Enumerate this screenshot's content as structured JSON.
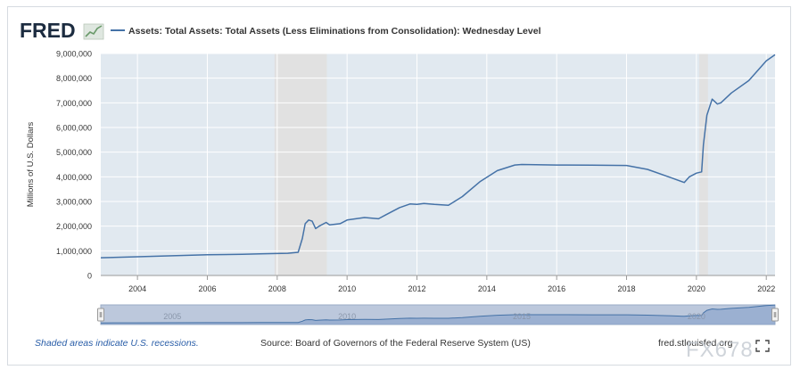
{
  "header": {
    "logo_text": "FRED",
    "series_title": "Assets: Total Assets: Total Assets (Less Eliminations from Consolidation): Wednesday Level"
  },
  "footer": {
    "recession_note": "Shaded areas indicate U.S. recessions.",
    "source": "Source: Board of Governors of the Federal Reserve System (US)",
    "site": "fred.stlouisfed.org",
    "watermark": "FX678"
  },
  "colors": {
    "line": "#4572a7",
    "recession": "#e1e1e1",
    "plot_bg": "#e1e9f0",
    "navigator": "#bcc8dc",
    "navigator_line": "#4572a7"
  },
  "chart_data": {
    "type": "line",
    "title": "Assets: Total Assets: Total Assets (Less Eliminations from Consolidation): Wednesday Level",
    "xlabel": "",
    "ylabel": "Millions of U.S. Dollars",
    "xlim": [
      2002.95,
      2022.25
    ],
    "ylim": [
      0,
      9000000
    ],
    "x_ticks": [
      2004,
      2006,
      2008,
      2010,
      2012,
      2014,
      2016,
      2018,
      2020,
      2022
    ],
    "x_tick_labels": [
      "2004",
      "2006",
      "2008",
      "2010",
      "2012",
      "2014",
      "2016",
      "2018",
      "2020",
      "2022"
    ],
    "y_ticks": [
      0,
      1000000,
      2000000,
      3000000,
      4000000,
      5000000,
      6000000,
      7000000,
      8000000,
      9000000
    ],
    "y_tick_labels": [
      "0",
      "1,000,000",
      "2,000,000",
      "3,000,000",
      "4,000,000",
      "5,000,000",
      "6,000,000",
      "7,000,000",
      "8,000,000",
      "9,000,000"
    ],
    "navigator_labels": [
      "2005",
      "2010",
      "2015",
      "2020"
    ],
    "navigator_label_x": [
      2005,
      2010,
      2015,
      2020
    ],
    "grid": true,
    "recessions": [
      [
        2007.92,
        2009.42
      ],
      [
        2020.08,
        2020.33
      ]
    ],
    "series": [
      {
        "name": "Total Assets",
        "x": [
          2002.95,
          2004.0,
          2005.0,
          2006.0,
          2007.0,
          2007.5,
          2007.95,
          2008.3,
          2008.6,
          2008.72,
          2008.8,
          2008.9,
          2009.0,
          2009.1,
          2009.2,
          2009.4,
          2009.5,
          2009.8,
          2010.0,
          2010.5,
          2010.9,
          2011.1,
          2011.5,
          2011.8,
          2012.0,
          2012.2,
          2012.5,
          2012.9,
          2013.3,
          2013.8,
          2014.3,
          2014.8,
          2015.0,
          2016.0,
          2017.0,
          2018.0,
          2018.6,
          2019.3,
          2019.65,
          2019.8,
          2020.0,
          2020.15,
          2020.2,
          2020.3,
          2020.45,
          2020.6,
          2020.7,
          2021.0,
          2021.5,
          2022.0,
          2022.25
        ],
        "values": [
          720000,
          760000,
          800000,
          840000,
          860000,
          880000,
          890000,
          900000,
          940000,
          1500000,
          2100000,
          2250000,
          2200000,
          1900000,
          2000000,
          2150000,
          2050000,
          2100000,
          2250000,
          2350000,
          2300000,
          2450000,
          2750000,
          2900000,
          2880000,
          2920000,
          2880000,
          2850000,
          3200000,
          3800000,
          4250000,
          4480000,
          4500000,
          4480000,
          4470000,
          4460000,
          4300000,
          3950000,
          3770000,
          4000000,
          4150000,
          4200000,
          5300000,
          6500000,
          7150000,
          6950000,
          7000000,
          7400000,
          7900000,
          8700000,
          8950000
        ]
      }
    ]
  }
}
